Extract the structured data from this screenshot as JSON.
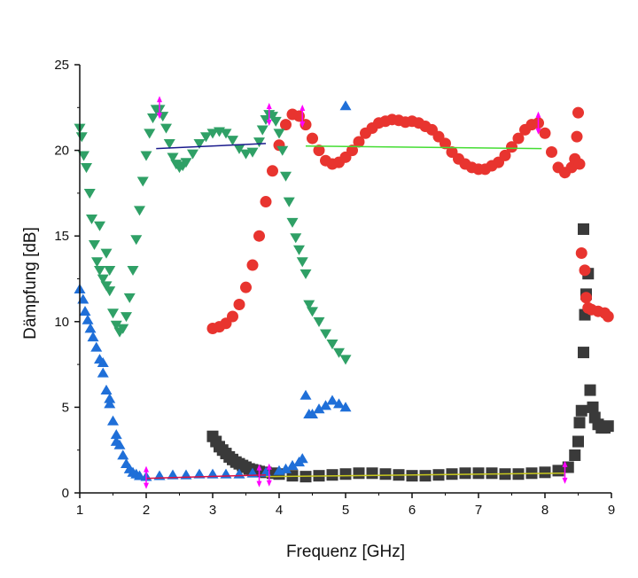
{
  "chart_data": {
    "type": "scatter",
    "title": "",
    "xlabel": "Frequenz [GHz]",
    "ylabel": "Dämpfung [dB]",
    "xlim": [
      1,
      9
    ],
    "ylim": [
      0,
      25
    ],
    "xticks": [
      1,
      2,
      3,
      4,
      5,
      6,
      7,
      8,
      9
    ],
    "yticks": [
      0,
      5,
      10,
      15,
      20,
      25
    ],
    "grid": false,
    "legend": "none",
    "colors": {
      "black": "#3a3a3a",
      "red": "#e8342f",
      "green": "#2fa066",
      "blue": "#1f6fd8",
      "magenta": "#ff00ff",
      "navy": "#1a1a8c",
      "lime": "#44dd33",
      "crimson": "#dd1144",
      "yellow": "#c8c81e"
    },
    "series": [
      {
        "marker": "square",
        "color": "#3a3a3a",
        "points": [
          [
            3.0,
            3.3
          ],
          [
            3.05,
            3.0
          ],
          [
            3.1,
            2.7
          ],
          [
            3.15,
            2.5
          ],
          [
            3.2,
            2.3
          ],
          [
            3.25,
            2.1
          ],
          [
            3.3,
            1.95
          ],
          [
            3.35,
            1.8
          ],
          [
            3.4,
            1.7
          ],
          [
            3.45,
            1.6
          ],
          [
            3.5,
            1.5
          ],
          [
            3.55,
            1.4
          ],
          [
            3.6,
            1.35
          ],
          [
            3.65,
            1.3
          ],
          [
            3.7,
            1.25
          ],
          [
            3.8,
            1.2
          ],
          [
            3.9,
            1.15
          ],
          [
            4.0,
            1.1
          ],
          [
            4.2,
            1.0
          ],
          [
            4.4,
            0.95
          ],
          [
            4.6,
            1.0
          ],
          [
            4.8,
            1.05
          ],
          [
            5.0,
            1.1
          ],
          [
            5.2,
            1.15
          ],
          [
            5.4,
            1.15
          ],
          [
            5.6,
            1.1
          ],
          [
            5.8,
            1.05
          ],
          [
            6.0,
            1.0
          ],
          [
            6.2,
            1.0
          ],
          [
            6.4,
            1.05
          ],
          [
            6.6,
            1.1
          ],
          [
            6.8,
            1.15
          ],
          [
            7.0,
            1.15
          ],
          [
            7.2,
            1.15
          ],
          [
            7.4,
            1.1
          ],
          [
            7.6,
            1.1
          ],
          [
            7.8,
            1.15
          ],
          [
            8.0,
            1.2
          ],
          [
            8.2,
            1.3
          ],
          [
            8.35,
            1.5
          ],
          [
            8.45,
            2.2
          ],
          [
            8.5,
            3.0
          ],
          [
            8.52,
            4.1
          ],
          [
            8.55,
            4.8
          ],
          [
            8.58,
            8.2
          ],
          [
            8.6,
            10.4
          ],
          [
            8.62,
            11.6
          ],
          [
            8.65,
            12.8
          ],
          [
            8.68,
            6.0
          ],
          [
            8.72,
            5.0
          ],
          [
            8.75,
            4.4
          ],
          [
            8.8,
            4.0
          ],
          [
            8.85,
            3.8
          ],
          [
            8.9,
            3.8
          ],
          [
            8.95,
            3.9
          ],
          [
            8.58,
            15.4
          ]
        ]
      },
      {
        "marker": "circle",
        "color": "#e8342f",
        "points": [
          [
            3.0,
            9.6
          ],
          [
            3.1,
            9.7
          ],
          [
            3.2,
            9.9
          ],
          [
            3.3,
            10.3
          ],
          [
            3.4,
            11.0
          ],
          [
            3.5,
            12.0
          ],
          [
            3.6,
            13.3
          ],
          [
            3.7,
            15.0
          ],
          [
            3.8,
            17.0
          ],
          [
            3.9,
            18.8
          ],
          [
            4.0,
            20.3
          ],
          [
            4.1,
            21.5
          ],
          [
            4.2,
            22.1
          ],
          [
            4.3,
            22.0
          ],
          [
            4.4,
            21.5
          ],
          [
            4.5,
            20.7
          ],
          [
            4.6,
            20.0
          ],
          [
            4.7,
            19.4
          ],
          [
            4.8,
            19.2
          ],
          [
            4.9,
            19.3
          ],
          [
            5.0,
            19.6
          ],
          [
            5.1,
            20.0
          ],
          [
            5.2,
            20.5
          ],
          [
            5.3,
            21.0
          ],
          [
            5.4,
            21.3
          ],
          [
            5.5,
            21.6
          ],
          [
            5.6,
            21.7
          ],
          [
            5.7,
            21.8
          ],
          [
            5.8,
            21.75
          ],
          [
            5.9,
            21.65
          ],
          [
            6.0,
            21.7
          ],
          [
            6.1,
            21.6
          ],
          [
            6.2,
            21.4
          ],
          [
            6.3,
            21.2
          ],
          [
            6.4,
            20.8
          ],
          [
            6.5,
            20.4
          ],
          [
            6.6,
            19.9
          ],
          [
            6.7,
            19.5
          ],
          [
            6.8,
            19.2
          ],
          [
            6.9,
            19.0
          ],
          [
            7.0,
            18.9
          ],
          [
            7.1,
            18.9
          ],
          [
            7.2,
            19.1
          ],
          [
            7.3,
            19.3
          ],
          [
            7.4,
            19.7
          ],
          [
            7.5,
            20.2
          ],
          [
            7.6,
            20.7
          ],
          [
            7.7,
            21.2
          ],
          [
            7.8,
            21.5
          ],
          [
            7.9,
            21.6
          ],
          [
            8.0,
            21.0
          ],
          [
            8.1,
            19.9
          ],
          [
            8.2,
            19.0
          ],
          [
            8.3,
            18.7
          ],
          [
            8.4,
            19.0
          ],
          [
            8.45,
            19.5
          ],
          [
            8.48,
            20.8
          ],
          [
            8.5,
            22.2
          ],
          [
            8.52,
            19.2
          ],
          [
            8.55,
            14.0
          ],
          [
            8.6,
            13.0
          ],
          [
            8.62,
            11.4
          ],
          [
            8.65,
            10.8
          ],
          [
            8.7,
            10.7
          ],
          [
            8.8,
            10.6
          ],
          [
            8.9,
            10.5
          ],
          [
            8.95,
            10.3
          ]
        ]
      },
      {
        "marker": "triangle-down",
        "color": "#2fa066",
        "points": [
          [
            1.0,
            21.3
          ],
          [
            1.03,
            20.8
          ],
          [
            1.06,
            19.7
          ],
          [
            1.1,
            19.0
          ],
          [
            1.15,
            17.5
          ],
          [
            1.18,
            16.0
          ],
          [
            1.22,
            14.5
          ],
          [
            1.26,
            13.5
          ],
          [
            1.3,
            13.0
          ],
          [
            1.35,
            12.5
          ],
          [
            1.4,
            12.1
          ],
          [
            1.45,
            11.8
          ],
          [
            1.5,
            10.5
          ],
          [
            1.55,
            9.8
          ],
          [
            1.6,
            9.4
          ],
          [
            1.65,
            9.6
          ],
          [
            1.7,
            10.3
          ],
          [
            1.75,
            11.4
          ],
          [
            1.8,
            13.0
          ],
          [
            1.85,
            14.8
          ],
          [
            1.9,
            16.5
          ],
          [
            1.95,
            18.2
          ],
          [
            2.0,
            19.7
          ],
          [
            2.05,
            21.0
          ],
          [
            2.1,
            21.9
          ],
          [
            2.15,
            22.4
          ],
          [
            2.2,
            22.4
          ],
          [
            2.25,
            22.0
          ],
          [
            2.3,
            21.3
          ],
          [
            2.35,
            20.4
          ],
          [
            2.4,
            19.6
          ],
          [
            2.45,
            19.2
          ],
          [
            2.5,
            19.0
          ],
          [
            2.55,
            19.1
          ],
          [
            2.6,
            19.3
          ],
          [
            2.7,
            19.8
          ],
          [
            2.8,
            20.4
          ],
          [
            2.9,
            20.8
          ],
          [
            3.0,
            21.0
          ],
          [
            3.1,
            21.1
          ],
          [
            3.2,
            21.0
          ],
          [
            3.3,
            20.6
          ],
          [
            3.4,
            20.1
          ],
          [
            3.5,
            19.8
          ],
          [
            3.6,
            19.9
          ],
          [
            3.7,
            20.5
          ],
          [
            3.75,
            21.2
          ],
          [
            3.8,
            21.8
          ],
          [
            3.85,
            22.1
          ],
          [
            3.9,
            22.0
          ],
          [
            3.95,
            21.7
          ],
          [
            4.0,
            21.0
          ],
          [
            4.05,
            20.0
          ],
          [
            4.1,
            18.5
          ],
          [
            4.15,
            17.0
          ],
          [
            4.2,
            15.8
          ],
          [
            4.25,
            14.9
          ],
          [
            4.3,
            14.2
          ],
          [
            4.35,
            13.5
          ],
          [
            4.4,
            12.8
          ],
          [
            4.45,
            11.0
          ],
          [
            4.5,
            10.6
          ],
          [
            4.6,
            10.0
          ],
          [
            4.7,
            9.3
          ],
          [
            4.8,
            8.7
          ],
          [
            4.9,
            8.2
          ],
          [
            5.0,
            7.8
          ],
          [
            1.3,
            15.6
          ],
          [
            1.4,
            14.0
          ],
          [
            1.45,
            13.0
          ]
        ]
      },
      {
        "marker": "triangle-up",
        "color": "#1f6fd8",
        "points": [
          [
            1.0,
            11.9
          ],
          [
            1.05,
            11.3
          ],
          [
            1.08,
            10.6
          ],
          [
            1.12,
            10.1
          ],
          [
            1.16,
            9.6
          ],
          [
            1.2,
            9.1
          ],
          [
            1.25,
            8.5
          ],
          [
            1.3,
            7.8
          ],
          [
            1.35,
            7.0
          ],
          [
            1.4,
            6.0
          ],
          [
            1.45,
            5.2
          ],
          [
            1.5,
            4.2
          ],
          [
            1.55,
            3.4
          ],
          [
            1.6,
            2.8
          ],
          [
            1.65,
            2.2
          ],
          [
            1.7,
            1.7
          ],
          [
            1.75,
            1.4
          ],
          [
            1.8,
            1.2
          ],
          [
            1.85,
            1.1
          ],
          [
            1.9,
            1.0
          ],
          [
            2.0,
            0.95
          ],
          [
            2.2,
            1.0
          ],
          [
            2.4,
            1.05
          ],
          [
            2.6,
            1.05
          ],
          [
            2.8,
            1.1
          ],
          [
            3.0,
            1.1
          ],
          [
            3.2,
            1.1
          ],
          [
            3.4,
            1.1
          ],
          [
            3.6,
            1.15
          ],
          [
            3.8,
            1.2
          ],
          [
            4.0,
            1.3
          ],
          [
            4.1,
            1.4
          ],
          [
            4.2,
            1.6
          ],
          [
            4.3,
            1.8
          ],
          [
            4.35,
            2.0
          ],
          [
            4.4,
            5.7
          ],
          [
            4.45,
            4.6
          ],
          [
            4.5,
            4.6
          ],
          [
            4.6,
            4.9
          ],
          [
            4.7,
            5.1
          ],
          [
            4.8,
            5.4
          ],
          [
            4.9,
            5.2
          ],
          [
            5.0,
            5.0
          ],
          [
            5.0,
            22.6
          ],
          [
            1.55,
            3.0
          ],
          [
            1.45,
            5.5
          ],
          [
            1.35,
            7.6
          ]
        ]
      }
    ],
    "fit_lines": [
      {
        "color": "#1a1a8c",
        "x": [
          2.15,
          3.8
        ],
        "y": [
          20.1,
          20.4
        ]
      },
      {
        "color": "#44dd33",
        "x": [
          4.4,
          7.95
        ],
        "y": [
          20.25,
          20.1
        ]
      },
      {
        "color": "#dd1144",
        "x": [
          2.0,
          3.8
        ],
        "y": [
          0.85,
          1.05
        ]
      },
      {
        "color": "#c8c81e",
        "x": [
          3.8,
          8.3
        ],
        "y": [
          0.95,
          1.15
        ]
      }
    ],
    "markers": [
      {
        "color": "#ff00ff",
        "x": 2.0,
        "y": 0.9
      },
      {
        "color": "#ff00ff",
        "x": 2.2,
        "y": 22.5
      },
      {
        "color": "#ff00ff",
        "x": 3.7,
        "y": 1.0
      },
      {
        "color": "#ff00ff",
        "x": 3.85,
        "y": 1.05
      },
      {
        "color": "#ff00ff",
        "x": 3.85,
        "y": 22.1
      },
      {
        "color": "#ff00ff",
        "x": 4.35,
        "y": 22.0
      },
      {
        "color": "#ff00ff",
        "x": 7.9,
        "y": 21.6
      },
      {
        "color": "#ff00ff",
        "x": 8.3,
        "y": 1.2
      }
    ]
  }
}
